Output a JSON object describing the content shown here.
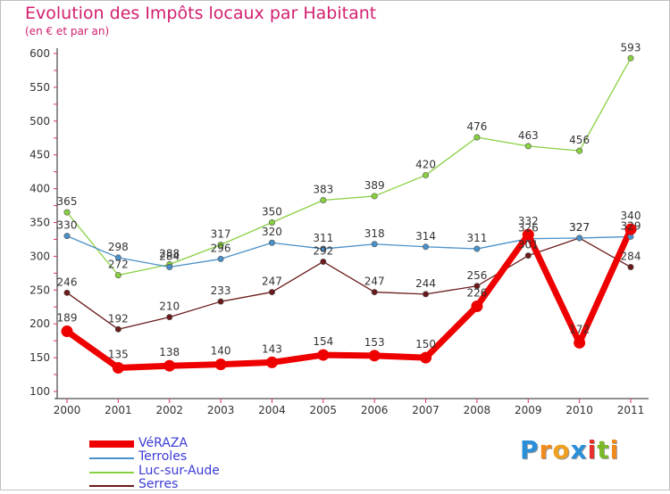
{
  "title": "Evolution des Impôts locaux par Habitant",
  "subtitle": "(en € et par an)",
  "logo": {
    "text": "Proxiti",
    "letters": [
      "P",
      "r",
      "o",
      "x",
      "i",
      "t",
      "i"
    ],
    "colors": [
      "#2a8fd8",
      "#f08a1c",
      "#f0a020",
      "#2a8fd8",
      "#e8302a",
      "#7ab828",
      "#f08a1c"
    ]
  },
  "chart_data": {
    "type": "line",
    "x": [
      "2000",
      "2001",
      "2002",
      "2003",
      "2004",
      "2005",
      "2006",
      "2007",
      "2008",
      "2009",
      "2010",
      "2011"
    ],
    "ylim": [
      100,
      600
    ],
    "yticks": [
      100,
      150,
      200,
      250,
      300,
      350,
      400,
      450,
      500,
      550,
      600
    ],
    "grid": false,
    "legend_position": "bottom-left",
    "series": [
      {
        "name": "VéRAZA",
        "color": "#ee0000",
        "values": [
          189,
          135,
          138,
          140,
          143,
          154,
          153,
          150,
          226,
          332,
          172,
          340
        ],
        "labels": [
          "189",
          "135",
          "138",
          "140",
          "143",
          "154",
          "153",
          "150",
          "226",
          "332",
          "172",
          "340"
        ]
      },
      {
        "name": "Terroles",
        "color": "#4a90c8",
        "values": [
          330,
          298,
          284,
          296,
          320,
          311,
          318,
          314,
          311,
          326,
          327,
          329
        ],
        "labels": [
          "330",
          "298",
          "284",
          "296",
          "320",
          "311",
          "318",
          "314",
          "311",
          "326",
          "327",
          "329"
        ]
      },
      {
        "name": "Luc-sur-Aude",
        "color": "#88d040",
        "values": [
          365,
          272,
          288,
          317,
          350,
          383,
          389,
          420,
          476,
          463,
          456,
          593
        ],
        "labels": [
          "365",
          "272",
          "288",
          "317",
          "350",
          "383",
          "389",
          "420",
          "476",
          "463",
          "456",
          "593"
        ]
      },
      {
        "name": "Serres",
        "color": "#6a1a1a",
        "values": [
          246,
          192,
          210,
          233,
          247,
          292,
          247,
          244,
          256,
          301,
          327,
          284
        ],
        "labels": [
          "246",
          "192",
          "210",
          "233",
          "247",
          "292",
          "247",
          "244",
          "256",
          "301",
          "327",
          "284"
        ]
      }
    ]
  }
}
